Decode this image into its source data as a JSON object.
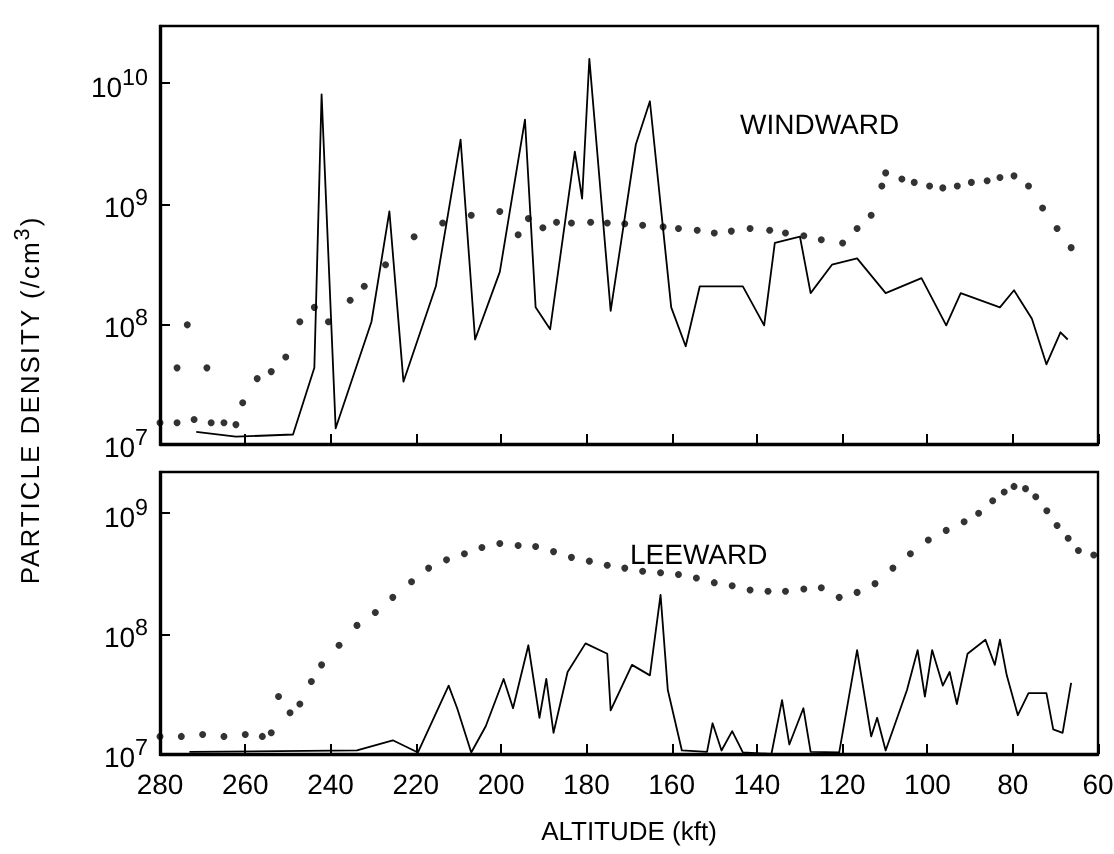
{
  "chart_data": [
    {
      "type": "scatter",
      "ylabel": "PARTICLE DENSITY (/cm$^{3}$)",
      "annotations": [
        "WINDWARD"
      ],
      "log": true,
      "grid": false,
      "tick_labels": "y",
      "xlim": [
        280,
        60
      ],
      "xticks": [
        280,
        260,
        240,
        220,
        200,
        180,
        160,
        140,
        120,
        100,
        80,
        60
      ],
      "ylim": [
        10000000,
        30000000000
      ],
      "yticks": [
        {
          "value": 10000000,
          "label": "10$^{7}$"
        },
        {
          "value": 100000000,
          "label": "10$^{8}$"
        },
        {
          "value": 1000000000,
          "label": "10$^{9}$"
        },
        {
          "value": 10000000000,
          "label": "10$^{10}$"
        }
      ],
      "series": [
        {
          "marker": "circle",
          "color": "#000000",
          "x": [
            276,
            273.6,
            269,
            280,
            276,
            272,
            268,
            265,
            262.2,
            260.6,
            257.2,
            253.9,
            250.5,
            247.2,
            243.8,
            240.5,
            235.4,
            232.1,
            227.1,
            220.4,
            213.7,
            207,
            200.3,
            196,
            193.6,
            190.2,
            187,
            183.5,
            179,
            175.1,
            171,
            166.8,
            162,
            158.4,
            154,
            150,
            146,
            141.6,
            137,
            133.3,
            129,
            124.9,
            119.9,
            116.5,
            113.2,
            110.7,
            109.8,
            106,
            103.1,
            99.5,
            96.4,
            93,
            89.7,
            86,
            83,
            79.7,
            76.3,
            73,
            69.6,
            66.3
          ],
          "values": [
            43000000,
            98000000,
            43000000,
            15000000,
            15000000,
            16000000,
            15000000,
            15000000,
            14500000,
            22000000,
            35000000,
            40000000,
            53000000,
            104000000,
            137000000,
            104000000,
            157000000,
            205000000,
            310000000,
            530000000,
            690000000,
            800000000,
            860000000,
            550000000,
            750000000,
            630000000,
            700000000,
            690000000,
            700000000,
            690000000,
            680000000,
            660000000,
            640000000,
            620000000,
            600000000,
            570000000,
            590000000,
            620000000,
            600000000,
            570000000,
            540000000,
            500000000,
            470000000,
            620000000,
            800000000,
            1400000000,
            1800000000,
            1600000000,
            1500000000,
            1400000000,
            1350000000,
            1400000000,
            1500000000,
            1550000000,
            1650000000,
            1700000000,
            1400000000,
            920000000,
            620000000,
            430000000
          ]
        },
        {
          "type": "line",
          "marker": "none",
          "color": "#000000",
          "x": [
            271.5,
            262.2,
            248.8,
            243.8,
            242.1,
            238.8,
            230.4,
            226.2,
            222.9,
            215.3,
            209.5,
            206.1,
            200.3,
            194.4,
            191.9,
            188.5,
            182.7,
            181,
            179.3,
            174.3,
            168.4,
            165.1,
            160.1,
            156.7,
            153.4,
            143.3,
            138.3,
            135.8,
            129.9,
            127.4,
            122.4,
            116.5,
            109.8,
            101.4,
            95.6,
            92.2,
            83,
            79.7,
            75.5,
            72.1,
            68.8,
            67.1
          ],
          "values": [
            12600000,
            11500000,
            12000000,
            43000000,
            8100000000,
            13500000,
            104000000,
            860000000,
            33000000,
            205000000,
            3400000000,
            74000000,
            270000000,
            5000000000,
            137000000,
            90000000,
            2700000000,
            1100000000,
            16000000000,
            128000000,
            3100000000,
            7100000000,
            137000000,
            65000000,
            205000000,
            205000000,
            97000000,
            470000000,
            530000000,
            180000000,
            310000000,
            350000000,
            180000000,
            240000000,
            97000000,
            180000000,
            137000000,
            190000000,
            110000000,
            46000000,
            85000000,
            74000000
          ]
        }
      ]
    },
    {
      "type": "scatter",
      "xlabel": "ALTITUDE (kft)",
      "annotations": [
        "LEEWARD"
      ],
      "log": true,
      "grid": false,
      "xlim": [
        280,
        60
      ],
      "xticks": [
        280,
        260,
        240,
        220,
        200,
        180,
        160,
        140,
        120,
        100,
        80,
        60
      ],
      "ylim": [
        10000000,
        2200000000
      ],
      "yticks": [
        {
          "value": 10000000,
          "label": "10$^{7}$"
        },
        {
          "value": 100000000,
          "label": "10$^{8}$"
        },
        {
          "value": 1000000000,
          "label": "10$^{9}$"
        }
      ],
      "series": [
        {
          "marker": "circle",
          "color": "#000000",
          "x": [
            280,
            275,
            270,
            265,
            260,
            256,
            253.9,
            252.2,
            249.5,
            247.2,
            244.5,
            242.1,
            238,
            233.8,
            229.5,
            225.4,
            221,
            217,
            212.8,
            208.6,
            204.5,
            200.3,
            196,
            191.9,
            187.7,
            183.5,
            179.3,
            175.1,
            171,
            166.8,
            162.6,
            158.4,
            154.2,
            150,
            145.8,
            141.6,
            137.4,
            133.3,
            129,
            124.9,
            120.7,
            116.5,
            112.3,
            108.1,
            104,
            99.8,
            95.6,
            91.4,
            88,
            84.7,
            82,
            79.7,
            77,
            74.6,
            72,
            69.6,
            67,
            64.6,
            61
          ],
          "values": [
            14000000,
            14000000,
            14500000,
            14000000,
            14500000,
            14000000,
            15000000,
            30000000,
            22000000,
            26000000,
            40000000,
            55000000,
            80000000,
            117000000,
            150000000,
            200000000,
            270000000,
            350000000,
            410000000,
            460000000,
            520000000,
            560000000,
            540000000,
            530000000,
            480000000,
            430000000,
            400000000,
            370000000,
            350000000,
            330000000,
            320000000,
            310000000,
            290000000,
            265000000,
            250000000,
            230000000,
            225000000,
            225000000,
            235000000,
            240000000,
            200000000,
            220000000,
            260000000,
            350000000,
            460000000,
            600000000,
            720000000,
            850000000,
            1000000000,
            1270000000,
            1500000000,
            1670000000,
            1600000000,
            1370000000,
            1050000000,
            790000000,
            620000000,
            490000000,
            450000000
          ]
        },
        {
          "type": "line",
          "marker": "none",
          "color": "#000000",
          "x": [
            273.1,
            233.8,
            225.4,
            219.5,
            212.3,
            210.3,
            207,
            203.6,
            199.4,
            197.2,
            193.6,
            191,
            189.4,
            187.7,
            184.4,
            180.2,
            175.1,
            174.3,
            169.3,
            165.1,
            162.6,
            160.9,
            157.6,
            151.7,
            150.4,
            148.3,
            145.8,
            143.3,
            136.6,
            134.1,
            132.4,
            129.1,
            127.4,
            120.7,
            116.5,
            113.2,
            111.8,
            109.8,
            104.8,
            102.3,
            100.6,
            98.9,
            96.4,
            94.8,
            93.1,
            90.6,
            86.4,
            84.2,
            83,
            81.4,
            78.8,
            76.3,
            72.1,
            70.5,
            68.3,
            66.3
          ],
          "values": [
            10400000,
            10700000,
            13000000,
            10300000,
            37000000,
            24000000,
            10300000,
            17000000,
            42000000,
            24000000,
            80000000,
            20000000,
            42000000,
            15000000,
            48000000,
            83000000,
            68000000,
            23000000,
            55000000,
            45000000,
            210000000,
            34000000,
            10700000,
            10400000,
            18000000,
            10700000,
            15500000,
            10300000,
            10000000,
            28000000,
            12000000,
            24000000,
            10400000,
            10300000,
            73000000,
            14000000,
            20000000,
            10700000,
            34000000,
            73000000,
            30000000,
            73000000,
            37000000,
            48000000,
            26000000,
            68000000,
            89000000,
            55000000,
            89000000,
            45000000,
            21000000,
            32000000,
            32000000,
            16000000,
            15000000,
            39000000
          ]
        }
      ]
    }
  ]
}
